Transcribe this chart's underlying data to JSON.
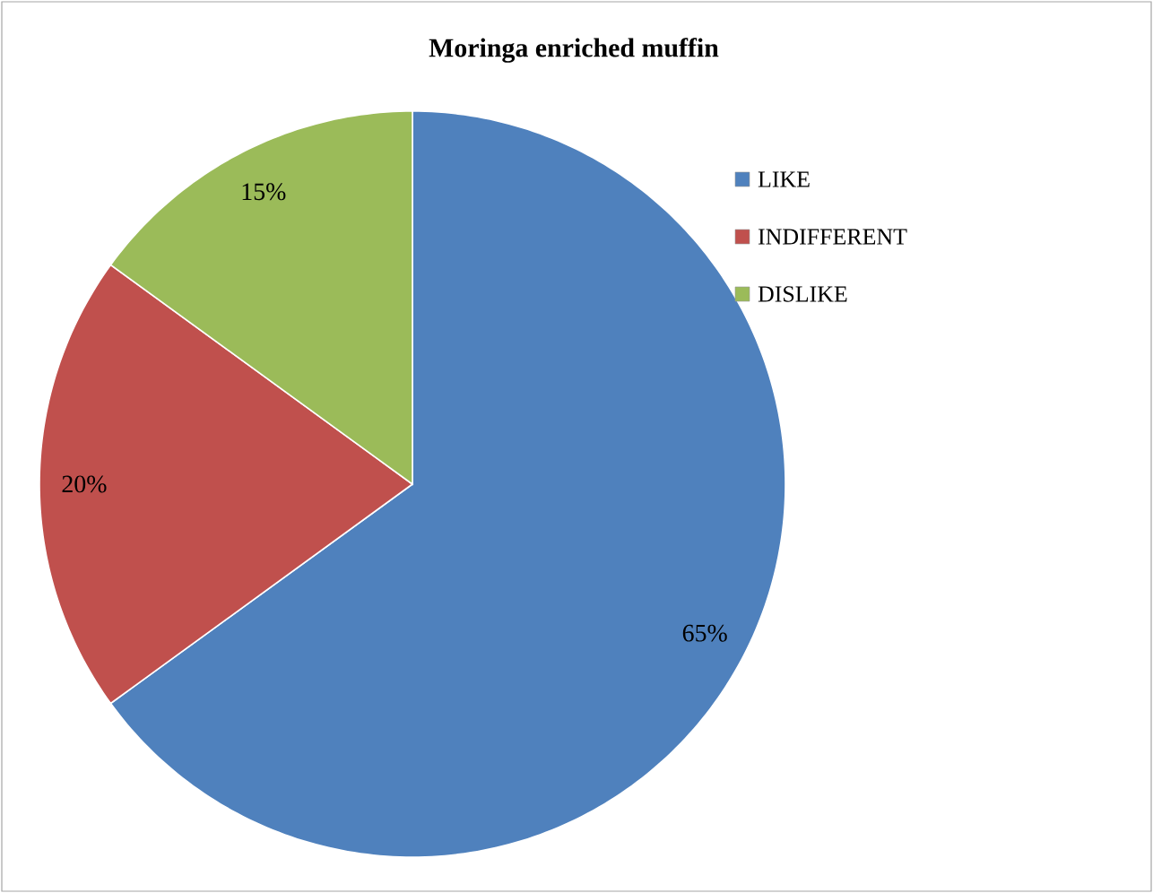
{
  "chart_data": {
    "type": "pie",
    "title": "Moringa enriched muffin",
    "categories": [
      "LIKE",
      "INDIFFERENT",
      "DISLIKE"
    ],
    "values": [
      65,
      20,
      15
    ],
    "colors": [
      "#4f81bd",
      "#c0504d",
      "#9bbb59"
    ],
    "value_labels": [
      "65%",
      "20%",
      "15%"
    ],
    "legend": "right"
  }
}
